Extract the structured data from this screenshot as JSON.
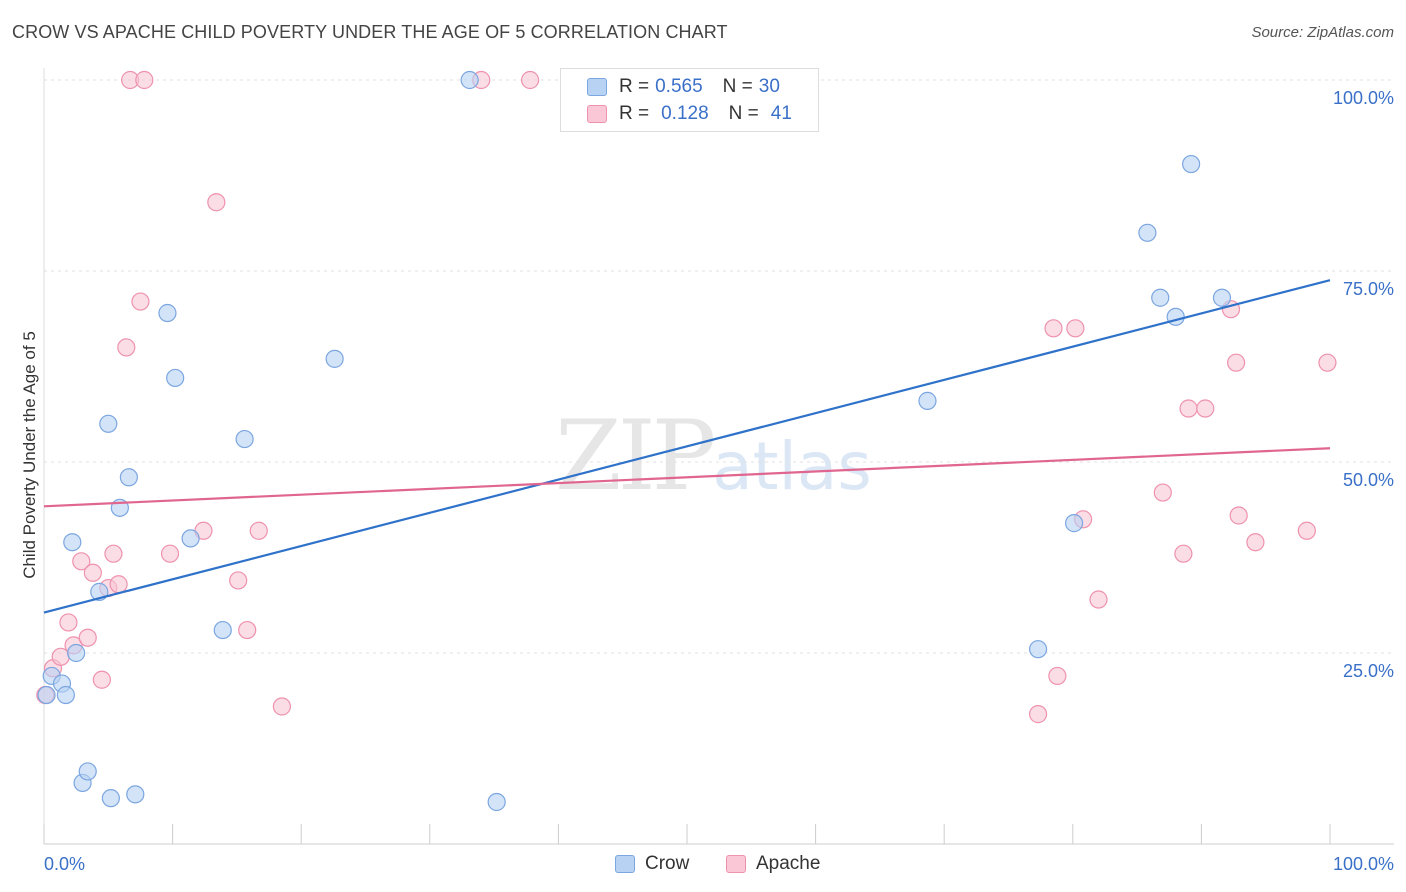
{
  "title": "CROW VS APACHE CHILD POVERTY UNDER THE AGE OF 5 CORRELATION CHART",
  "source": "Source: ZipAtlas.com",
  "watermark": {
    "zip": "ZIP",
    "atlas": "atlas"
  },
  "colors": {
    "crow_fill": "#b8d2f3",
    "crow_stroke": "#7ba6e0",
    "crow_line": "#2f72c9",
    "apache_fill": "#f9c7d5",
    "apache_stroke": "#ee92ad",
    "apache_line": "#e0658f",
    "grid": "#e0e0e0",
    "axis_text": "#3a70c8"
  },
  "legend": {
    "rows": [
      {
        "r_label": "R =",
        "r_value": "0.565",
        "n_label": "N =",
        "n_value": "30"
      },
      {
        "r_label": "R =",
        "r_value": "0.128",
        "n_label": "N =",
        "n_value": "41"
      }
    ],
    "bottom": [
      "Crow",
      "Apache"
    ]
  },
  "chart_data": {
    "type": "scatter",
    "title": "CROW VS APACHE CHILD POVERTY UNDER THE AGE OF 5 CORRELATION CHART",
    "xlabel": "",
    "ylabel": "Child Poverty Under the Age of 5",
    "xlim": [
      0,
      100
    ],
    "ylim": [
      0,
      100
    ],
    "x_tick_labels": [
      "0.0%",
      "100.0%"
    ],
    "y_tick_labels": [
      {
        "value": 25,
        "label": "25.0%"
      },
      {
        "value": 50,
        "label": "50.0%"
      },
      {
        "value": 75,
        "label": "75.0%"
      },
      {
        "value": 100,
        "label": "100.0%"
      }
    ],
    "series": [
      {
        "name": "Crow",
        "r": 0.565,
        "n": 30,
        "trend": {
          "x": [
            0,
            100
          ],
          "y": [
            30.3,
            73.8
          ]
        },
        "points": [
          [
            0.2,
            19.5
          ],
          [
            0.6,
            22
          ],
          [
            1.4,
            21
          ],
          [
            1.7,
            19.5
          ],
          [
            2.2,
            39.5
          ],
          [
            2.5,
            25
          ],
          [
            3.0,
            8
          ],
          [
            3.4,
            9.5
          ],
          [
            4.3,
            33
          ],
          [
            5.0,
            55
          ],
          [
            5.2,
            6
          ],
          [
            5.9,
            44
          ],
          [
            6.6,
            48
          ],
          [
            7.1,
            6.5
          ],
          [
            9.6,
            69.5
          ],
          [
            10.2,
            61
          ],
          [
            11.4,
            40
          ],
          [
            13.9,
            28
          ],
          [
            15.6,
            53
          ],
          [
            22.6,
            63.5
          ],
          [
            33.1,
            100
          ],
          [
            35.2,
            5.5
          ],
          [
            68.7,
            58
          ],
          [
            77.3,
            25.5
          ],
          [
            80.1,
            42
          ],
          [
            85.8,
            80
          ],
          [
            86.8,
            71.5
          ],
          [
            88.0,
            69
          ],
          [
            89.2,
            89
          ],
          [
            91.6,
            71.5
          ]
        ]
      },
      {
        "name": "Apache",
        "r": 0.128,
        "n": 41,
        "trend": {
          "x": [
            0,
            100
          ],
          "y": [
            44.2,
            51.8
          ]
        },
        "points": [
          [
            0.1,
            19.5
          ],
          [
            0.7,
            23
          ],
          [
            1.3,
            24.5
          ],
          [
            1.9,
            29
          ],
          [
            2.3,
            26
          ],
          [
            2.9,
            37
          ],
          [
            3.4,
            27
          ],
          [
            3.8,
            35.5
          ],
          [
            4.5,
            21.5
          ],
          [
            5.0,
            33.5
          ],
          [
            5.4,
            38
          ],
          [
            5.8,
            34
          ],
          [
            6.4,
            65
          ],
          [
            6.7,
            100
          ],
          [
            7.5,
            71
          ],
          [
            7.8,
            100
          ],
          [
            9.8,
            38
          ],
          [
            12.4,
            41
          ],
          [
            13.4,
            84
          ],
          [
            15.1,
            34.5
          ],
          [
            15.8,
            28
          ],
          [
            16.7,
            41
          ],
          [
            18.5,
            18
          ],
          [
            34.0,
            100
          ],
          [
            37.8,
            100
          ],
          [
            77.3,
            17
          ],
          [
            78.5,
            67.5
          ],
          [
            78.8,
            22
          ],
          [
            80.2,
            67.5
          ],
          [
            80.8,
            42.5
          ],
          [
            82.0,
            32
          ],
          [
            87.0,
            46
          ],
          [
            88.6,
            38
          ],
          [
            89.0,
            57
          ],
          [
            90.3,
            57
          ],
          [
            92.3,
            70
          ],
          [
            92.7,
            63
          ],
          [
            92.9,
            43
          ],
          [
            94.2,
            39.5
          ],
          [
            98.2,
            41
          ],
          [
            99.8,
            63
          ]
        ]
      }
    ]
  }
}
